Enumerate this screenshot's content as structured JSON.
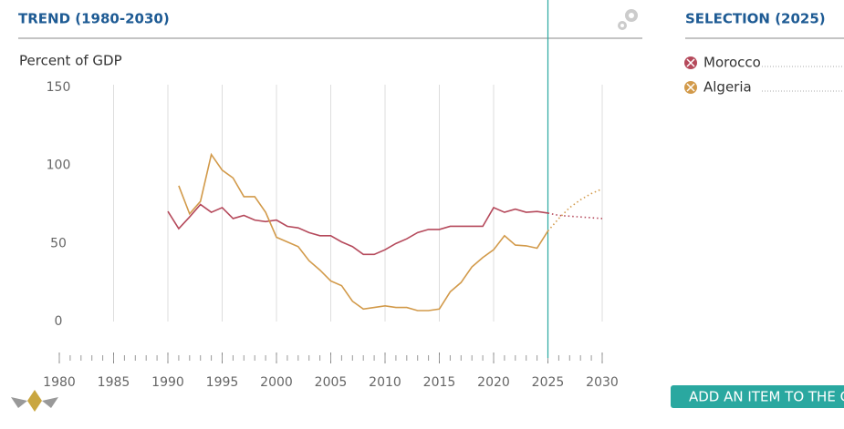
{
  "chart_data": {
    "type": "line",
    "title": "TREND (1980-2030)",
    "y_label": "Percent of GDP",
    "selection_title": "SELECTION (2025)",
    "button": "ADD AN ITEM TO THE CHART",
    "selected_year": 2025,
    "projection_start": 2025,
    "x": [
      1990,
      1991,
      1992,
      1993,
      1994,
      1995,
      1996,
      1997,
      1998,
      1999,
      2000,
      2001,
      2002,
      2003,
      2004,
      2005,
      2006,
      2007,
      2008,
      2009,
      2010,
      2011,
      2012,
      2013,
      2014,
      2015,
      2016,
      2017,
      2018,
      2019,
      2020,
      2021,
      2022,
      2023,
      2024,
      2025,
      2026,
      2027,
      2028,
      2029,
      2030
    ],
    "series": [
      {
        "name": "Morocco",
        "color": "#b5495b",
        "values": [
          70.6,
          59.5,
          67,
          75,
          70,
          73,
          66,
          68,
          65,
          64,
          65,
          61,
          60,
          57,
          55,
          55,
          51,
          48,
          43,
          43,
          46,
          50,
          53,
          57,
          59,
          59,
          61,
          61,
          61,
          61,
          73,
          70,
          72,
          70,
          70.5,
          69.5,
          68,
          67.5,
          67,
          66.5,
          66
        ]
      },
      {
        "name": "Algeria",
        "color": "#d29a4a",
        "values": [
          null,
          87,
          69,
          77,
          107,
          97,
          92,
          80,
          80,
          70,
          54,
          51,
          48,
          39,
          33,
          26,
          23,
          13,
          8,
          9,
          10,
          9,
          9,
          7,
          7,
          8,
          19,
          25,
          35,
          41,
          46,
          55,
          49,
          48.5,
          47,
          58,
          66,
          73,
          78,
          82,
          85
        ]
      }
    ],
    "xlim": [
      1980,
      2030
    ],
    "ylim": [
      0,
      150
    ],
    "xticks": [
      1980,
      1985,
      1990,
      1995,
      2000,
      2005,
      2010,
      2015,
      2020,
      2025,
      2030
    ],
    "xminorticks": [
      1980,
      1981,
      1982,
      1983,
      1984,
      1985,
      1986,
      1987,
      1988,
      1989,
      1990,
      1991,
      1992,
      1993,
      1994,
      1995,
      1996,
      1997,
      1998,
      1999,
      2000,
      2001,
      2002,
      2003,
      2004,
      2005,
      2006,
      2007,
      2008,
      2009,
      2010,
      2011,
      2012,
      2013,
      2014,
      2015,
      2016,
      2017,
      2018,
      2019,
      2020,
      2021,
      2022,
      2023,
      2024,
      2025,
      2026,
      2027,
      2028,
      2029,
      2030
    ],
    "yticks": [
      0,
      50,
      100,
      150
    ],
    "grid": true
  }
}
